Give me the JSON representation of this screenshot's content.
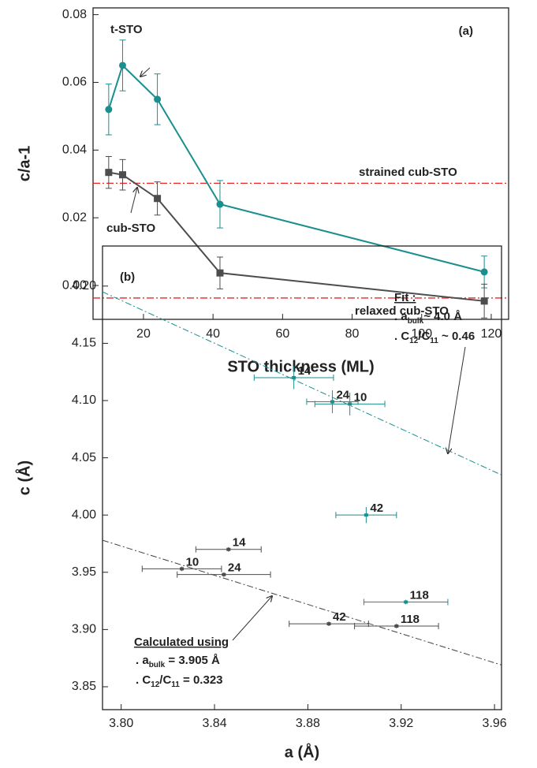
{
  "chart_data": [
    {
      "type": "line",
      "xlabel": "STO thickness (ML)",
      "ylabel": "c/a-1",
      "xlim": [
        5.5,
        125
      ],
      "xticks": [
        20,
        40,
        60,
        80,
        100,
        120
      ],
      "ylim": [
        -0.01,
        0.082
      ],
      "yticks": [
        {
          "value": 0,
          "label": "0.00"
        },
        0.02,
        0.04,
        0.06,
        0.08
      ],
      "series": [
        {
          "name": "t-STO",
          "color": "#1b8e8e",
          "marker": "circle",
          "x": [
            10,
            14,
            24,
            42,
            118
          ],
          "values": [
            0.052,
            0.065,
            0.055,
            0.024,
            0.004
          ],
          "errors": [
            0.0075,
            0.0075,
            0.0075,
            0.007,
            0.0047
          ]
        },
        {
          "name": "cub-STO",
          "color": "#4d4d4d",
          "marker": "square",
          "x": [
            10,
            14,
            24,
            42,
            118
          ],
          "values": [
            0.0334,
            0.0327,
            0.0257,
            0.0037,
            -0.0046
          ],
          "errors": [
            0.0047,
            0.0045,
            0.0049,
            0.0047,
            0.005
          ]
        }
      ],
      "reference_lines": [
        {
          "label": "strained cub-STO",
          "value": 0.0302,
          "color": "#e8262a"
        },
        {
          "label": "relaxed cub-STO",
          "value": -0.0037,
          "color": "#e8262a"
        }
      ],
      "annotations": [
        {
          "parts": [
            {
              "text": "(a)"
            }
          ]
        }
      ]
    },
    {
      "type": "scatter",
      "xlabel": "a (Å)",
      "ylabel": "c (Å)",
      "xlim": [
        3.792,
        3.963
      ],
      "xticks": [
        {
          "value": 3.8,
          "label": "3.80"
        },
        3.84,
        3.88,
        3.92,
        3.96
      ],
      "ylim": [
        3.83,
        4.235
      ],
      "yticks": [
        3.85,
        {
          "value": 3.9,
          "label": "3.90"
        },
        3.95,
        {
          "value": 4,
          "label": "4.00"
        },
        4.05,
        {
          "value": 4.1,
          "label": "4.10"
        },
        4.15,
        {
          "value": 4.2,
          "label": "4.20"
        }
      ],
      "series": [
        {
          "color": "#1b8e8e",
          "x": [
            3.874,
            3.8905,
            3.898,
            3.905,
            3.922
          ],
          "values": [
            4.12,
            4.099,
            4.097,
            4.0,
            3.924
          ],
          "xerr": [
            0.017,
            0.011,
            0.015,
            0.013,
            0.018
          ],
          "yerr": [
            0.01,
            0.01,
            0.01,
            0.007,
            0.002
          ],
          "labels": [
            "14",
            "24",
            "10",
            "42",
            "118"
          ]
        },
        {
          "color": "#4d4d4d",
          "x": [
            3.846,
            3.826,
            3.844,
            3.889,
            3.918
          ],
          "values": [
            3.97,
            3.953,
            3.948,
            3.905,
            3.903
          ],
          "xerr": [
            0.014,
            0.017,
            0.02,
            0.017,
            0.018
          ],
          "yerr": [
            0.002,
            0.002,
            0.002,
            0.002,
            0.002
          ],
          "labels": [
            "14",
            "10",
            "24",
            "42",
            "118"
          ]
        }
      ],
      "fit_lines": [
        {
          "color": "#1b8e8e",
          "x": [
            3.792,
            3.963
          ],
          "y": [
            4.195,
            4.035
          ]
        },
        {
          "color": "#404040",
          "x": [
            3.792,
            3.963
          ],
          "y": [
            3.978,
            3.869
          ]
        }
      ],
      "annotations": [
        {
          "parts": [
            {
              "text": "(b)"
            }
          ]
        },
        {
          "parts": [
            {
              "text": "Fit :"
            }
          ]
        },
        {
          "parts": [
            {
              "text": ". a"
            },
            {
              "sub": "bulk"
            },
            {
              "text": "~ 4.0 Å"
            }
          ]
        },
        {
          "parts": [
            {
              "text": ". C"
            },
            {
              "sub": "12"
            },
            {
              "text": "/C"
            },
            {
              "sub": "11"
            },
            {
              "text": " ~ 0.46"
            }
          ]
        },
        {
          "parts": [
            {
              "text": "Calculated using"
            }
          ]
        },
        {
          "parts": [
            {
              "text": ". a"
            },
            {
              "sub": "bulk"
            },
            {
              "text": " = 3.905 Å"
            }
          ]
        },
        {
          "parts": [
            {
              "text": ". C"
            },
            {
              "sub": "12"
            },
            {
              "text": "/C"
            },
            {
              "sub": "11"
            },
            {
              "text": " = 0.323"
            }
          ]
        }
      ]
    }
  ]
}
